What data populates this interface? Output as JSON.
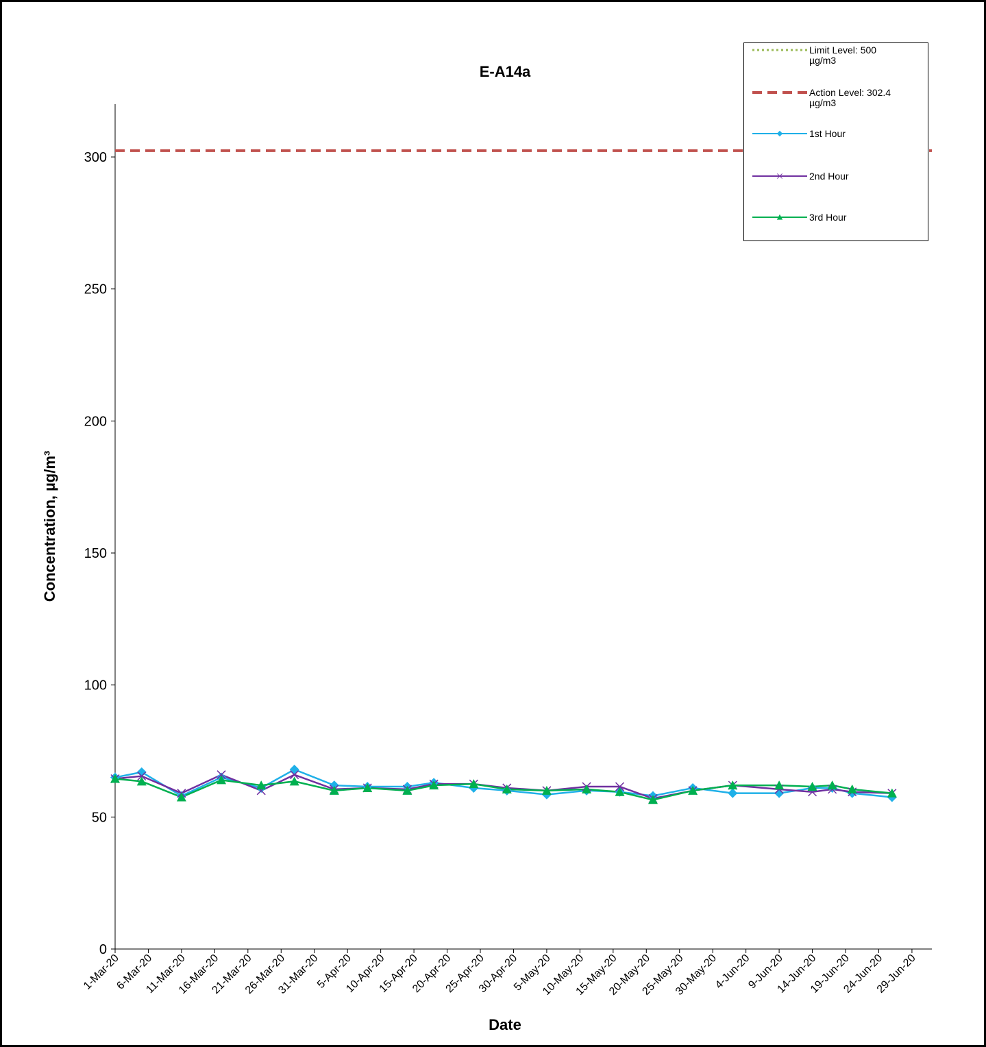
{
  "chart_data": {
    "type": "line",
    "title": "E-A14a",
    "x_label": "Date",
    "y_label": "Concentration, µg/m³",
    "x": [
      "2020-03-01",
      "2020-03-05",
      "2020-03-11",
      "2020-03-17",
      "2020-03-23",
      "2020-03-28",
      "2020-04-03",
      "2020-04-08",
      "2020-04-14",
      "2020-04-18",
      "2020-04-24",
      "2020-04-29",
      "2020-05-05",
      "2020-05-11",
      "2020-05-16",
      "2020-05-21",
      "2020-05-27",
      "2020-06-02",
      "2020-06-09",
      "2020-06-14",
      "2020-06-17",
      "2020-06-20",
      "2020-06-26"
    ],
    "series": [
      {
        "name": "1st Hour",
        "color": "#1fb0e8",
        "marker": "diamond",
        "values": [
          65,
          67,
          58,
          65,
          61,
          68,
          62,
          61.5,
          61.5,
          63,
          61,
          60,
          58.5,
          60,
          59.5,
          58,
          61,
          59,
          59,
          61,
          61,
          59,
          57.5
        ]
      },
      {
        "name": "2nd Hour",
        "color": "#7030a0",
        "marker": "x",
        "values": [
          64.5,
          65.5,
          59,
          66,
          60,
          66,
          60.5,
          61,
          60.5,
          62.5,
          62.5,
          61,
          60,
          61.5,
          61.5,
          57,
          60,
          62,
          60.5,
          59.5,
          60.5,
          59.5,
          59
        ]
      },
      {
        "name": "3rd Hour",
        "color": "#00b050",
        "marker": "triangle",
        "values": [
          64.5,
          63.5,
          57.5,
          64,
          62,
          63.5,
          60,
          61,
          60,
          62,
          62.5,
          60.5,
          60,
          60.5,
          59.5,
          56.5,
          60,
          62,
          62,
          61.5,
          62,
          60.5,
          59
        ]
      }
    ],
    "reference_lines": [
      {
        "name": "Limit Level: 500 µg/m3",
        "value": 500,
        "color": "#9bbb59",
        "style": "dotted"
      },
      {
        "name": "Action Level: 302.4 µg/m3",
        "value": 302.4,
        "color": "#c0504d",
        "style": "dashed"
      }
    ],
    "xlim": [
      "2020-03-01",
      "2020-07-02"
    ],
    "xticks": [
      {
        "value": "2020-03-01",
        "label": "1-Mar-20"
      },
      {
        "value": "2020-03-06",
        "label": "6-Mar-20"
      },
      {
        "value": "2020-03-11",
        "label": "11-Mar-20"
      },
      {
        "value": "2020-03-16",
        "label": "16-Mar-20"
      },
      {
        "value": "2020-03-21",
        "label": "21-Mar-20"
      },
      {
        "value": "2020-03-26",
        "label": "26-Mar-20"
      },
      {
        "value": "2020-03-31",
        "label": "31-Mar-20"
      },
      {
        "value": "2020-04-05",
        "label": "5-Apr-20"
      },
      {
        "value": "2020-04-10",
        "label": "10-Apr-20"
      },
      {
        "value": "2020-04-15",
        "label": "15-Apr-20"
      },
      {
        "value": "2020-04-20",
        "label": "20-Apr-20"
      },
      {
        "value": "2020-04-25",
        "label": "25-Apr-20"
      },
      {
        "value": "2020-04-30",
        "label": "30-Apr-20"
      },
      {
        "value": "2020-05-05",
        "label": "5-May-20"
      },
      {
        "value": "2020-05-10",
        "label": "10-May-20"
      },
      {
        "value": "2020-05-15",
        "label": "15-May-20"
      },
      {
        "value": "2020-05-20",
        "label": "20-May-20"
      },
      {
        "value": "2020-05-25",
        "label": "25-May-20"
      },
      {
        "value": "2020-05-30",
        "label": "30-May-20"
      },
      {
        "value": "2020-06-04",
        "label": "4-Jun-20"
      },
      {
        "value": "2020-06-09",
        "label": "9-Jun-20"
      },
      {
        "value": "2020-06-14",
        "label": "14-Jun-20"
      },
      {
        "value": "2020-06-19",
        "label": "19-Jun-20"
      },
      {
        "value": "2020-06-24",
        "label": "24-Jun-20"
      },
      {
        "value": "2020-06-29",
        "label": "29-Jun-20"
      }
    ],
    "ylim": [
      0,
      320
    ],
    "yticks": [
      0,
      50,
      100,
      150,
      200,
      250,
      300
    ],
    "grid": false,
    "legend": "top-right"
  }
}
